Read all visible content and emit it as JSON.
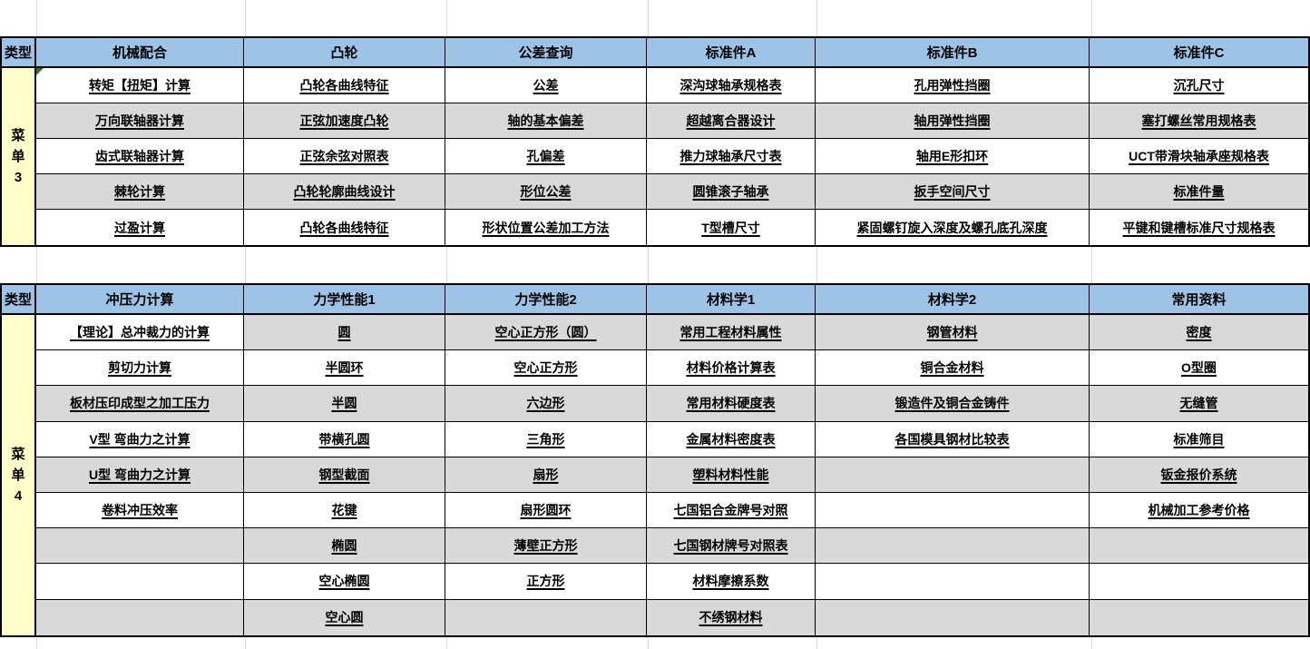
{
  "colors": {
    "header_blue": "#9DC3E6",
    "menu_yellow": "#FFFFCC",
    "row_gray": "#D9D9D9",
    "row_white": "#FFFFFF",
    "table_border": "#000000",
    "faint_gridline": "#D9D9D9",
    "error_indicator_green": "#38761D",
    "text": "#000000"
  },
  "tables": [
    {
      "type_label": "类型",
      "menu_label": "菜单3",
      "menu_chars": [
        "菜",
        "单",
        "3"
      ],
      "columns": [
        "机械配合",
        "凸轮",
        "公差查询",
        "标准件A",
        "标准件B",
        "标准件C"
      ],
      "rows": [
        [
          "转矩【扭矩】计算",
          "凸轮各曲线特征",
          "公差",
          "深沟球轴承规格表",
          "孔用弹性挡圈",
          "沉孔尺寸"
        ],
        [
          "万向联轴器计算",
          "正弦加速度凸轮",
          "轴的基本偏差",
          "超越离合器设计",
          "轴用弹性挡圈",
          "塞打螺丝常用规格表"
        ],
        [
          "齿式联轴器计算",
          "正弦余弦对照表",
          "孔偏差",
          "推力球轴承尺寸表",
          "轴用E形扣环",
          "UCT带滑块轴承座规格表"
        ],
        [
          "棘轮计算",
          "凸轮轮廓曲线设计",
          "形位公差",
          "圆锥滚子轴承",
          "扳手空间尺寸",
          "标准件量"
        ],
        [
          "过盈计算",
          "凸轮各曲线特征",
          "形状位置公差加工方法",
          "T型槽尺寸",
          "紧固螺钉旋入深度及螺孔底孔深度",
          "平键和键槽标准尺寸规格表"
        ]
      ]
    },
    {
      "type_label": "类型",
      "menu_label": "菜单4",
      "menu_chars": [
        "菜",
        "单",
        "4"
      ],
      "columns": [
        "冲压力计算",
        "力学性能1",
        "力学性能2",
        "材料学1",
        "材料学2",
        "常用资料"
      ],
      "rows": [
        [
          "【理论】总冲裁力的计算",
          "圆",
          "空心正方形（圆）",
          "常用工程材料属性",
          "钢管材料",
          "密度"
        ],
        [
          "剪切力计算",
          "半圆环",
          "空心正方形",
          "材料价格计算表",
          "铜合金材料",
          "O型圈"
        ],
        [
          "板材压印成型之加工压力",
          "半圆",
          "六边形",
          "常用材料硬度表",
          "锻造件及铜合金铸件",
          "无缝管"
        ],
        [
          "V型 弯曲力之计算",
          "带横孔圆",
          "三角形",
          "金属材料密度表",
          "各国模具钢材比较表",
          "标准筛目"
        ],
        [
          "U型 弯曲力之计算",
          "钢型截面",
          "扇形",
          "塑料材料性能",
          "",
          "钣金报价系统"
        ],
        [
          "卷料冲压效率",
          "花键",
          "扇形圆环",
          "七国铝合金牌号对照",
          "",
          "机械加工参考价格"
        ],
        [
          "",
          "椭圆",
          "薄壁正方形",
          "七国钢材牌号对照表",
          "",
          ""
        ],
        [
          "",
          "空心椭圆",
          "正方形",
          "材料摩擦系数",
          "",
          ""
        ],
        [
          "",
          "空心圆",
          "",
          "不绣钢材料",
          "",
          ""
        ]
      ]
    }
  ]
}
